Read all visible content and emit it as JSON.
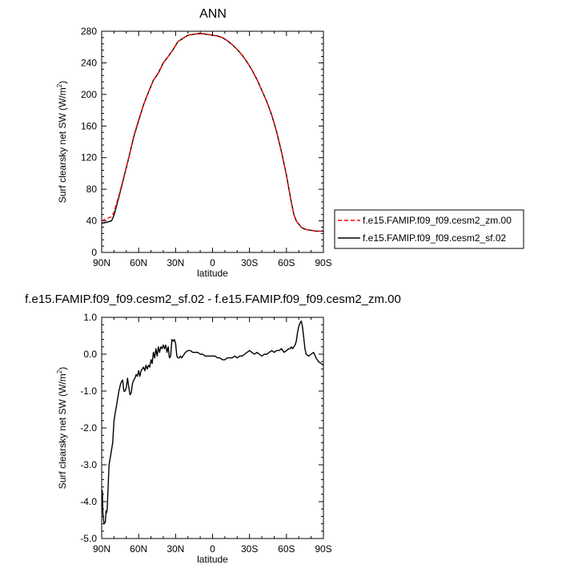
{
  "chart_data": [
    {
      "type": "line",
      "title": "ANN",
      "xlabel": "latitude",
      "ylabel": "Surf clearsky net SW (W/m2)",
      "ylabel_parts": {
        "pre": "Surf clearsky net SW (W/m",
        "sup": "2",
        "post": ")"
      },
      "xlim": [
        90,
        -90
      ],
      "ylim": [
        0,
        280
      ],
      "x_ticks": [
        90,
        60,
        30,
        0,
        -30,
        -60,
        -90
      ],
      "x_tick_labels": [
        "90N",
        "60N",
        "30N",
        "0",
        "30S",
        "60S",
        "90S"
      ],
      "y_ticks": [
        0,
        40,
        80,
        120,
        160,
        200,
        240,
        280
      ],
      "y_tick_labels": [
        "0",
        "40",
        "80",
        "120",
        "160",
        "200",
        "240",
        "280"
      ],
      "legend_position": "right",
      "series": [
        {
          "name": "f.e15.FAMIP.f09_f09.cesm2_zm.00",
          "color": "#ff0000",
          "dash": "dashed",
          "x": [
            90,
            86,
            84,
            82,
            80,
            76,
            72,
            68,
            64,
            60,
            56,
            52,
            48,
            44,
            40,
            36,
            32,
            28,
            24,
            20,
            16,
            12,
            8,
            4,
            0,
            -4,
            -8,
            -12,
            -16,
            -20,
            -24,
            -28,
            -32,
            -36,
            -40,
            -44,
            -48,
            -52,
            -56,
            -60,
            -62,
            -64,
            -66,
            -68,
            -70,
            -72,
            -74,
            -76,
            -80,
            -84,
            -88,
            -90
          ],
          "y": [
            40,
            43,
            44,
            45,
            51,
            72,
            96,
            120,
            147,
            168,
            187,
            203,
            218,
            227,
            240,
            248,
            257,
            267,
            271,
            275,
            276,
            277,
            277,
            276,
            275,
            274,
            272,
            268,
            263,
            257,
            250,
            241,
            231,
            219,
            205,
            191,
            174,
            153,
            127,
            98,
            80,
            63,
            48,
            40,
            36,
            32,
            30,
            29,
            28,
            27,
            27,
            27
          ]
        },
        {
          "name": "f.e15.FAMIP.f09_f09.cesm2_sf.02",
          "color": "#000000",
          "dash": "solid",
          "x": [
            90,
            86,
            84,
            82,
            80,
            76,
            72,
            68,
            64,
            60,
            56,
            52,
            48,
            44,
            40,
            36,
            32,
            28,
            24,
            20,
            16,
            12,
            8,
            4,
            0,
            -4,
            -8,
            -12,
            -16,
            -20,
            -24,
            -28,
            -32,
            -36,
            -40,
            -44,
            -48,
            -52,
            -56,
            -60,
            -62,
            -64,
            -66,
            -68,
            -70,
            -72,
            -74,
            -76,
            -80,
            -84,
            -88,
            -90
          ],
          "y": [
            37,
            38,
            39,
            40,
            47,
            70,
            95,
            120,
            146,
            167,
            187,
            203,
            218,
            227,
            240,
            248,
            257,
            267,
            271,
            275,
            276,
            277,
            277,
            276,
            275,
            274,
            272,
            268,
            263,
            257,
            250,
            241,
            231,
            219,
            205,
            191,
            174,
            153,
            127,
            98,
            80,
            63,
            48,
            40,
            36,
            32,
            30,
            29,
            28,
            27,
            27,
            27
          ]
        }
      ]
    },
    {
      "type": "line",
      "title": "f.e15.FAMIP.f09_f09.cesm2_sf.02 - f.e15.FAMIP.f09_f09.cesm2_zm.00",
      "xlabel": "latitude",
      "ylabel": "Surf clearsky net SW (W/m2)",
      "ylabel_parts": {
        "pre": "Surf clearsky net SW (W/m",
        "sup": "2",
        "post": ")"
      },
      "xlim": [
        90,
        -90
      ],
      "ylim": [
        -5.0,
        1.0
      ],
      "x_ticks": [
        90,
        60,
        30,
        0,
        -30,
        -60,
        -90
      ],
      "x_tick_labels": [
        "90N",
        "60N",
        "30N",
        "0",
        "30S",
        "60S",
        "90S"
      ],
      "y_ticks": [
        -5.0,
        -4.0,
        -3.0,
        -2.0,
        -1.0,
        0.0,
        1.0
      ],
      "y_tick_labels": [
        "-5.0",
        "-4.0",
        "-3.0",
        "-2.0",
        "-1.0",
        "0.0",
        "1.0"
      ],
      "series": [
        {
          "color": "#000000",
          "x": [
            90,
            89.5,
            89,
            88.5,
            88,
            87,
            86.5,
            86,
            85.5,
            85,
            84,
            83,
            82,
            81,
            80,
            79,
            78,
            77,
            76,
            75,
            74,
            73,
            72,
            71,
            70,
            69,
            68,
            67,
            66,
            65,
            64,
            63,
            62,
            61,
            60,
            59,
            58,
            57,
            56,
            55,
            54,
            53,
            52,
            51,
            50,
            49,
            48,
            47,
            46,
            45,
            44,
            43,
            42,
            41,
            40,
            39,
            38,
            37,
            36,
            35,
            34,
            33,
            32,
            31,
            30,
            29,
            28,
            27,
            26,
            25,
            24,
            22,
            20,
            18,
            16,
            14,
            12,
            10,
            8,
            6,
            4,
            2,
            0,
            -2,
            -4,
            -6,
            -8,
            -10,
            -12,
            -14,
            -16,
            -18,
            -20,
            -22,
            -24,
            -26,
            -28,
            -30,
            -32,
            -34,
            -36,
            -38,
            -40,
            -42,
            -44,
            -46,
            -48,
            -50,
            -52,
            -54,
            -56,
            -58,
            -60,
            -62,
            -63,
            -64,
            -65,
            -66,
            -67,
            -68,
            -69,
            -70,
            -71,
            -72,
            -73,
            -74,
            -75,
            -76,
            -78,
            -80,
            -82,
            -84,
            -86,
            -88,
            -90
          ],
          "y": [
            -3.9,
            -3.7,
            -4.3,
            -4.5,
            -4.6,
            -4.55,
            -4.25,
            -4.3,
            -4.2,
            -3.8,
            -3.0,
            -2.8,
            -2.6,
            -2.4,
            -1.8,
            -1.6,
            -1.4,
            -1.2,
            -1.0,
            -0.85,
            -0.75,
            -0.7,
            -1.0,
            -1.0,
            -0.9,
            -0.65,
            -0.9,
            -1.1,
            -1.05,
            -0.8,
            -0.7,
            -0.65,
            -0.55,
            -0.6,
            -0.45,
            -0.6,
            -0.45,
            -0.4,
            -0.35,
            -0.45,
            -0.3,
            -0.4,
            -0.3,
            -0.35,
            -0.15,
            -0.25,
            0.05,
            -0.1,
            0.15,
            -0.05,
            0.2,
            0.05,
            0.2,
            0.15,
            0.25,
            0.15,
            0.25,
            0.05,
            0.2,
            -0.1,
            -0.05,
            0.4,
            0.35,
            0.4,
            0.3,
            -0.05,
            -0.1,
            -0.1,
            -0.05,
            -0.1,
            -0.05,
            0.05,
            0.1,
            0.1,
            0.05,
            0.05,
            0.05,
            0.0,
            0.0,
            -0.05,
            -0.05,
            -0.05,
            -0.05,
            -0.05,
            -0.1,
            -0.1,
            -0.15,
            -0.15,
            -0.1,
            -0.1,
            -0.1,
            -0.05,
            -0.1,
            -0.05,
            -0.05,
            0.0,
            0.05,
            0.1,
            0.05,
            0.0,
            0.05,
            0.0,
            -0.05,
            0.0,
            0.0,
            0.05,
            0.1,
            0.05,
            0.1,
            0.1,
            0.15,
            0.05,
            0.1,
            0.15,
            0.15,
            0.2,
            0.15,
            0.2,
            0.25,
            0.35,
            0.6,
            0.75,
            0.85,
            0.9,
            0.75,
            0.45,
            0.15,
            0.0,
            -0.05,
            0.0,
            0.05,
            -0.1,
            -0.2,
            -0.25,
            -0.3
          ]
        }
      ]
    }
  ]
}
